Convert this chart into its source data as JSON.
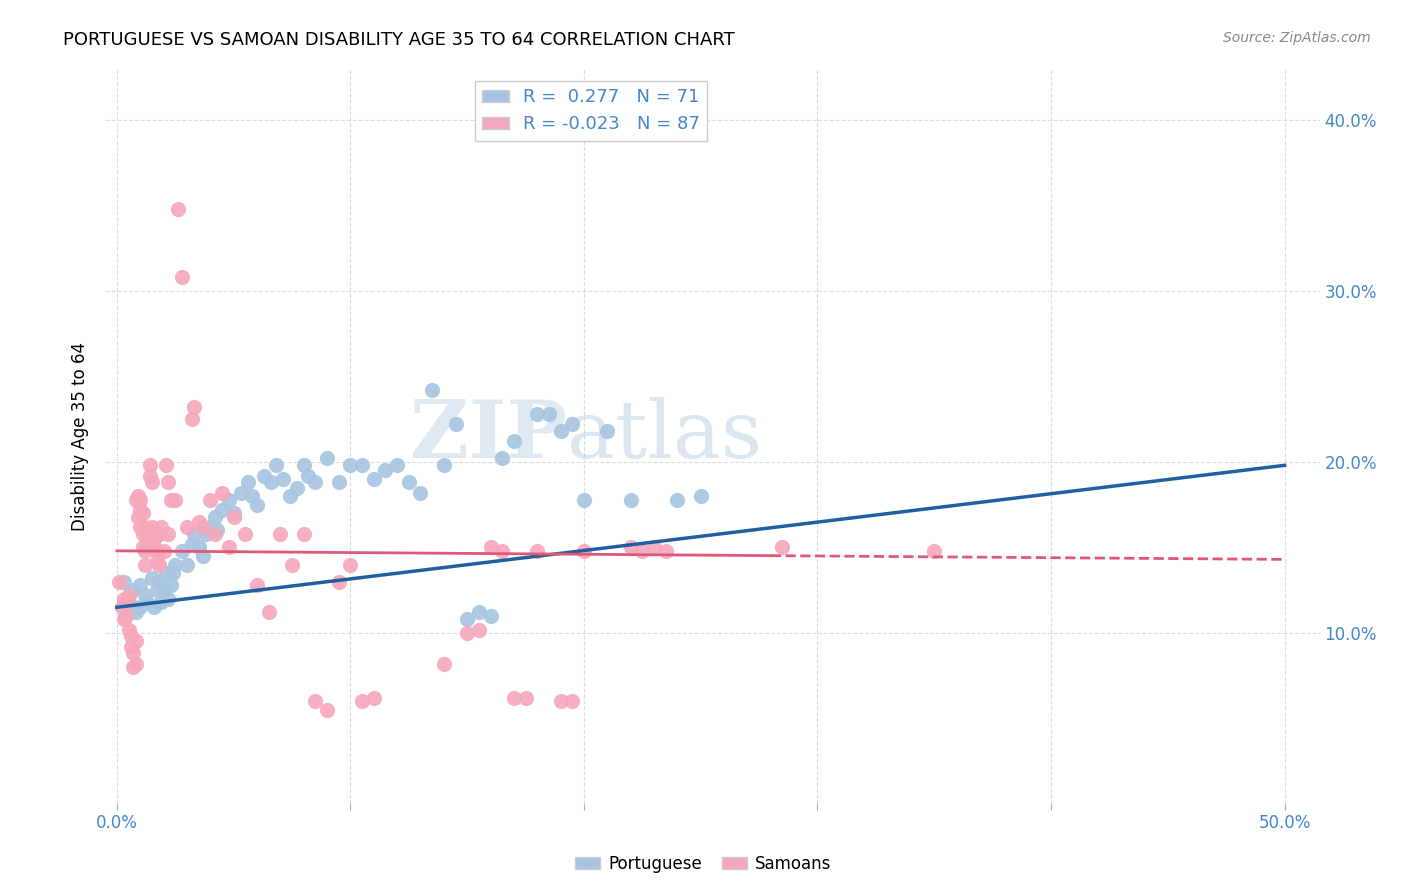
{
  "title": "PORTUGUESE VS SAMOAN DISABILITY AGE 35 TO 64 CORRELATION CHART",
  "source": "Source: ZipAtlas.com",
  "ylabel": "Disability Age 35 to 64",
  "xlim": [
    -0.005,
    0.515
  ],
  "ylim": [
    0.0,
    0.43
  ],
  "xticks": [
    0.0,
    0.1,
    0.2,
    0.3,
    0.4,
    0.5
  ],
  "xtick_labels": [
    "0.0%",
    "",
    "",
    "",
    "",
    "50.0%"
  ],
  "yticks": [
    0.1,
    0.2,
    0.3,
    0.4
  ],
  "ytick_labels_right": [
    "10.0%",
    "20.0%",
    "30.0%",
    "40.0%"
  ],
  "R_portuguese": 0.277,
  "N_portuguese": 71,
  "R_samoan": -0.023,
  "N_samoan": 87,
  "blue_color": "#a8c4e0",
  "pink_color": "#f4a7b9",
  "blue_line_color": "#2060a0",
  "pink_line_color": "#e05878",
  "blue_tick_color": "#4488cc",
  "portuguese_points": [
    [
      0.003,
      0.13
    ],
    [
      0.005,
      0.118
    ],
    [
      0.007,
      0.125
    ],
    [
      0.008,
      0.112
    ],
    [
      0.01,
      0.128
    ],
    [
      0.01,
      0.115
    ],
    [
      0.012,
      0.122
    ],
    [
      0.013,
      0.118
    ],
    [
      0.015,
      0.132
    ],
    [
      0.016,
      0.115
    ],
    [
      0.017,
      0.125
    ],
    [
      0.018,
      0.13
    ],
    [
      0.019,
      0.118
    ],
    [
      0.02,
      0.125
    ],
    [
      0.021,
      0.135
    ],
    [
      0.022,
      0.12
    ],
    [
      0.023,
      0.128
    ],
    [
      0.024,
      0.135
    ],
    [
      0.025,
      0.14
    ],
    [
      0.028,
      0.148
    ],
    [
      0.03,
      0.14
    ],
    [
      0.032,
      0.152
    ],
    [
      0.033,
      0.158
    ],
    [
      0.035,
      0.15
    ],
    [
      0.037,
      0.145
    ],
    [
      0.038,
      0.158
    ],
    [
      0.04,
      0.162
    ],
    [
      0.042,
      0.168
    ],
    [
      0.043,
      0.16
    ],
    [
      0.045,
      0.172
    ],
    [
      0.048,
      0.178
    ],
    [
      0.05,
      0.17
    ],
    [
      0.053,
      0.182
    ],
    [
      0.056,
      0.188
    ],
    [
      0.058,
      0.18
    ],
    [
      0.06,
      0.175
    ],
    [
      0.063,
      0.192
    ],
    [
      0.066,
      0.188
    ],
    [
      0.068,
      0.198
    ],
    [
      0.071,
      0.19
    ],
    [
      0.074,
      0.18
    ],
    [
      0.077,
      0.185
    ],
    [
      0.08,
      0.198
    ],
    [
      0.082,
      0.192
    ],
    [
      0.085,
      0.188
    ],
    [
      0.09,
      0.202
    ],
    [
      0.095,
      0.188
    ],
    [
      0.1,
      0.198
    ],
    [
      0.105,
      0.198
    ],
    [
      0.11,
      0.19
    ],
    [
      0.115,
      0.195
    ],
    [
      0.12,
      0.198
    ],
    [
      0.125,
      0.188
    ],
    [
      0.13,
      0.182
    ],
    [
      0.135,
      0.242
    ],
    [
      0.14,
      0.198
    ],
    [
      0.145,
      0.222
    ],
    [
      0.15,
      0.108
    ],
    [
      0.155,
      0.112
    ],
    [
      0.16,
      0.11
    ],
    [
      0.165,
      0.202
    ],
    [
      0.17,
      0.212
    ],
    [
      0.18,
      0.228
    ],
    [
      0.185,
      0.228
    ],
    [
      0.19,
      0.218
    ],
    [
      0.195,
      0.222
    ],
    [
      0.2,
      0.178
    ],
    [
      0.21,
      0.218
    ],
    [
      0.22,
      0.178
    ],
    [
      0.24,
      0.178
    ],
    [
      0.25,
      0.18
    ]
  ],
  "samoan_points": [
    [
      0.001,
      0.13
    ],
    [
      0.002,
      0.115
    ],
    [
      0.003,
      0.12
    ],
    [
      0.003,
      0.108
    ],
    [
      0.004,
      0.11
    ],
    [
      0.004,
      0.118
    ],
    [
      0.005,
      0.122
    ],
    [
      0.005,
      0.102
    ],
    [
      0.006,
      0.098
    ],
    [
      0.006,
      0.092
    ],
    [
      0.007,
      0.08
    ],
    [
      0.007,
      0.088
    ],
    [
      0.008,
      0.095
    ],
    [
      0.008,
      0.082
    ],
    [
      0.008,
      0.178
    ],
    [
      0.009,
      0.18
    ],
    [
      0.009,
      0.168
    ],
    [
      0.01,
      0.172
    ],
    [
      0.01,
      0.178
    ],
    [
      0.01,
      0.162
    ],
    [
      0.011,
      0.17
    ],
    [
      0.011,
      0.158
    ],
    [
      0.011,
      0.15
    ],
    [
      0.012,
      0.148
    ],
    [
      0.012,
      0.14
    ],
    [
      0.012,
      0.162
    ],
    [
      0.013,
      0.155
    ],
    [
      0.013,
      0.15
    ],
    [
      0.014,
      0.192
    ],
    [
      0.014,
      0.198
    ],
    [
      0.015,
      0.188
    ],
    [
      0.015,
      0.162
    ],
    [
      0.015,
      0.158
    ],
    [
      0.016,
      0.15
    ],
    [
      0.016,
      0.155
    ],
    [
      0.017,
      0.148
    ],
    [
      0.017,
      0.142
    ],
    [
      0.018,
      0.14
    ],
    [
      0.018,
      0.158
    ],
    [
      0.019,
      0.162
    ],
    [
      0.02,
      0.148
    ],
    [
      0.021,
      0.198
    ],
    [
      0.022,
      0.188
    ],
    [
      0.022,
      0.158
    ],
    [
      0.023,
      0.178
    ],
    [
      0.025,
      0.178
    ],
    [
      0.026,
      0.348
    ],
    [
      0.028,
      0.308
    ],
    [
      0.03,
      0.162
    ],
    [
      0.032,
      0.225
    ],
    [
      0.033,
      0.232
    ],
    [
      0.035,
      0.165
    ],
    [
      0.037,
      0.162
    ],
    [
      0.04,
      0.178
    ],
    [
      0.042,
      0.158
    ],
    [
      0.045,
      0.182
    ],
    [
      0.048,
      0.15
    ],
    [
      0.05,
      0.168
    ],
    [
      0.055,
      0.158
    ],
    [
      0.06,
      0.128
    ],
    [
      0.065,
      0.112
    ],
    [
      0.07,
      0.158
    ],
    [
      0.075,
      0.14
    ],
    [
      0.08,
      0.158
    ],
    [
      0.085,
      0.06
    ],
    [
      0.09,
      0.055
    ],
    [
      0.095,
      0.13
    ],
    [
      0.1,
      0.14
    ],
    [
      0.105,
      0.06
    ],
    [
      0.11,
      0.062
    ],
    [
      0.14,
      0.082
    ],
    [
      0.15,
      0.1
    ],
    [
      0.155,
      0.102
    ],
    [
      0.16,
      0.15
    ],
    [
      0.165,
      0.148
    ],
    [
      0.17,
      0.062
    ],
    [
      0.175,
      0.062
    ],
    [
      0.18,
      0.148
    ],
    [
      0.19,
      0.06
    ],
    [
      0.195,
      0.06
    ],
    [
      0.2,
      0.148
    ],
    [
      0.22,
      0.15
    ],
    [
      0.225,
      0.148
    ],
    [
      0.23,
      0.15
    ],
    [
      0.235,
      0.148
    ],
    [
      0.285,
      0.15
    ],
    [
      0.35,
      0.148
    ]
  ]
}
